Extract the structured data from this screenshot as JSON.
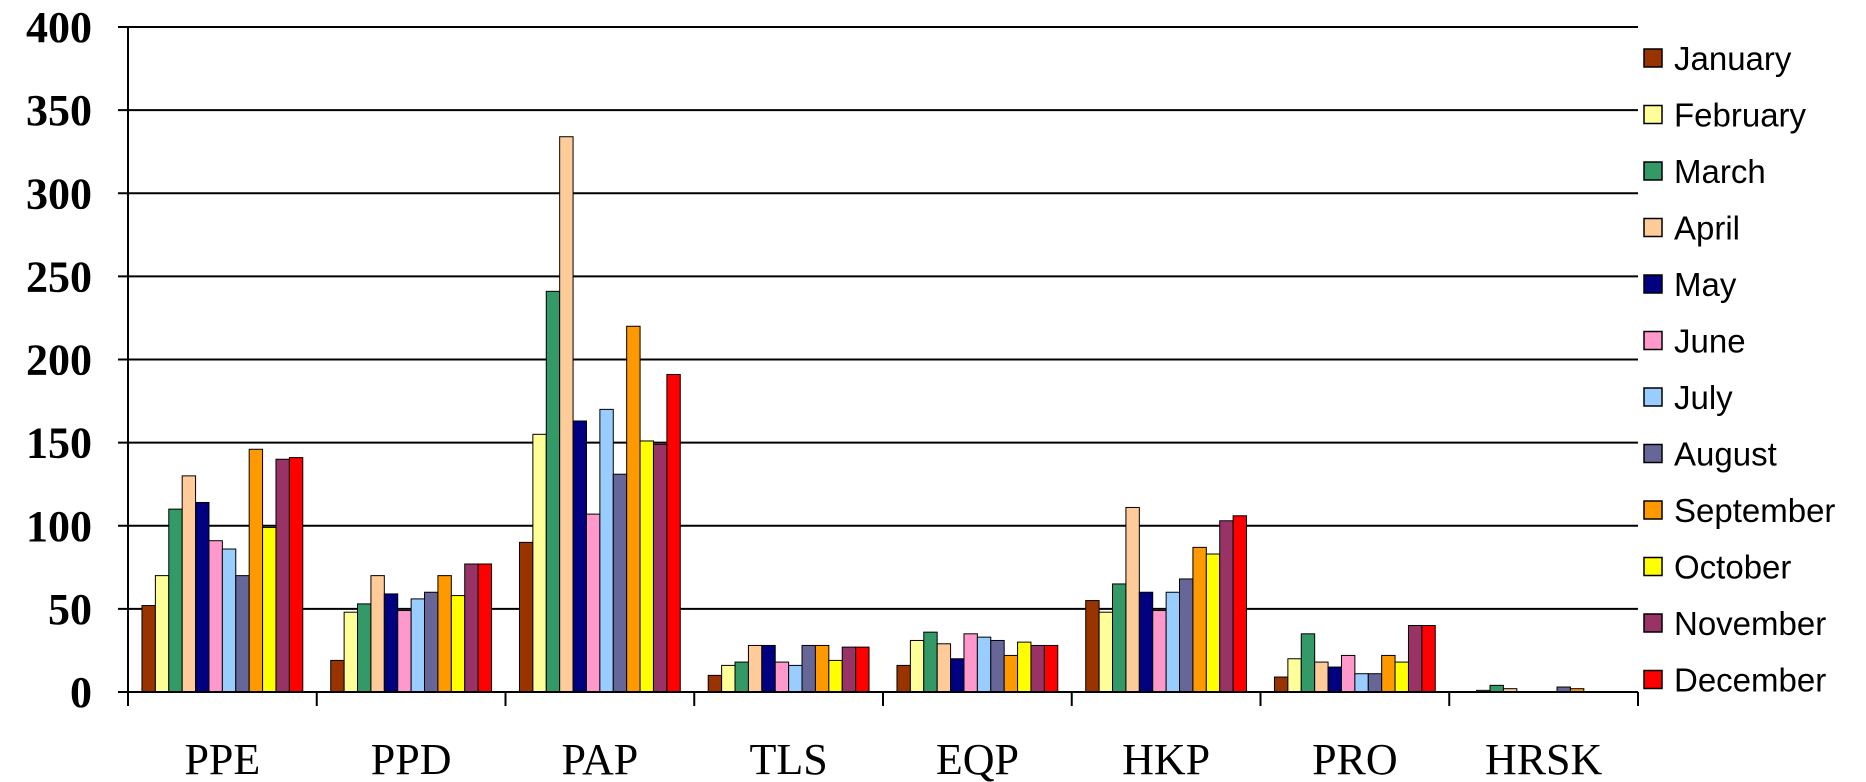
{
  "chart_data": {
    "type": "bar",
    "title": "",
    "xlabel": "",
    "ylabel": "",
    "ylim": [
      0,
      400
    ],
    "yticks": [
      0,
      50,
      100,
      150,
      200,
      250,
      300,
      350,
      400
    ],
    "grid": true,
    "legend_position": "right",
    "categories": [
      "PPE",
      "PPD",
      "PAP",
      "TLS",
      "EQP",
      "HKP",
      "PRO",
      "HRSK"
    ],
    "series": [
      {
        "name": "January",
        "color": "#993300",
        "values": [
          52,
          19,
          90,
          10,
          16,
          55,
          9,
          0
        ]
      },
      {
        "name": "February",
        "color": "#FFFF99",
        "values": [
          70,
          48,
          155,
          16,
          31,
          48,
          20,
          1
        ]
      },
      {
        "name": "March",
        "color": "#339966",
        "values": [
          110,
          53,
          241,
          18,
          36,
          65,
          35,
          4
        ]
      },
      {
        "name": "April",
        "color": "#FFCC99",
        "values": [
          130,
          70,
          334,
          28,
          29,
          111,
          18,
          2
        ]
      },
      {
        "name": "May",
        "color": "#000080",
        "values": [
          114,
          59,
          163,
          28,
          20,
          60,
          15,
          0
        ]
      },
      {
        "name": "June",
        "color": "#FF99CC",
        "values": [
          91,
          49,
          107,
          18,
          35,
          49,
          22,
          0
        ]
      },
      {
        "name": "July",
        "color": "#99CCFF",
        "values": [
          86,
          56,
          170,
          16,
          33,
          60,
          11,
          0
        ]
      },
      {
        "name": "August",
        "color": "#666699",
        "values": [
          70,
          60,
          131,
          28,
          31,
          68,
          11,
          3
        ]
      },
      {
        "name": "September",
        "color": "#FF9900",
        "values": [
          146,
          70,
          220,
          28,
          22,
          87,
          22,
          2
        ]
      },
      {
        "name": "October",
        "color": "#FFFF00",
        "values": [
          99,
          58,
          151,
          19,
          30,
          83,
          18,
          0
        ]
      },
      {
        "name": "November",
        "color": "#993366",
        "values": [
          140,
          77,
          149,
          27,
          28,
          103,
          40,
          0
        ]
      },
      {
        "name": "December",
        "color": "#FF0000",
        "values": [
          141,
          77,
          191,
          27,
          28,
          106,
          40,
          0
        ]
      }
    ]
  }
}
